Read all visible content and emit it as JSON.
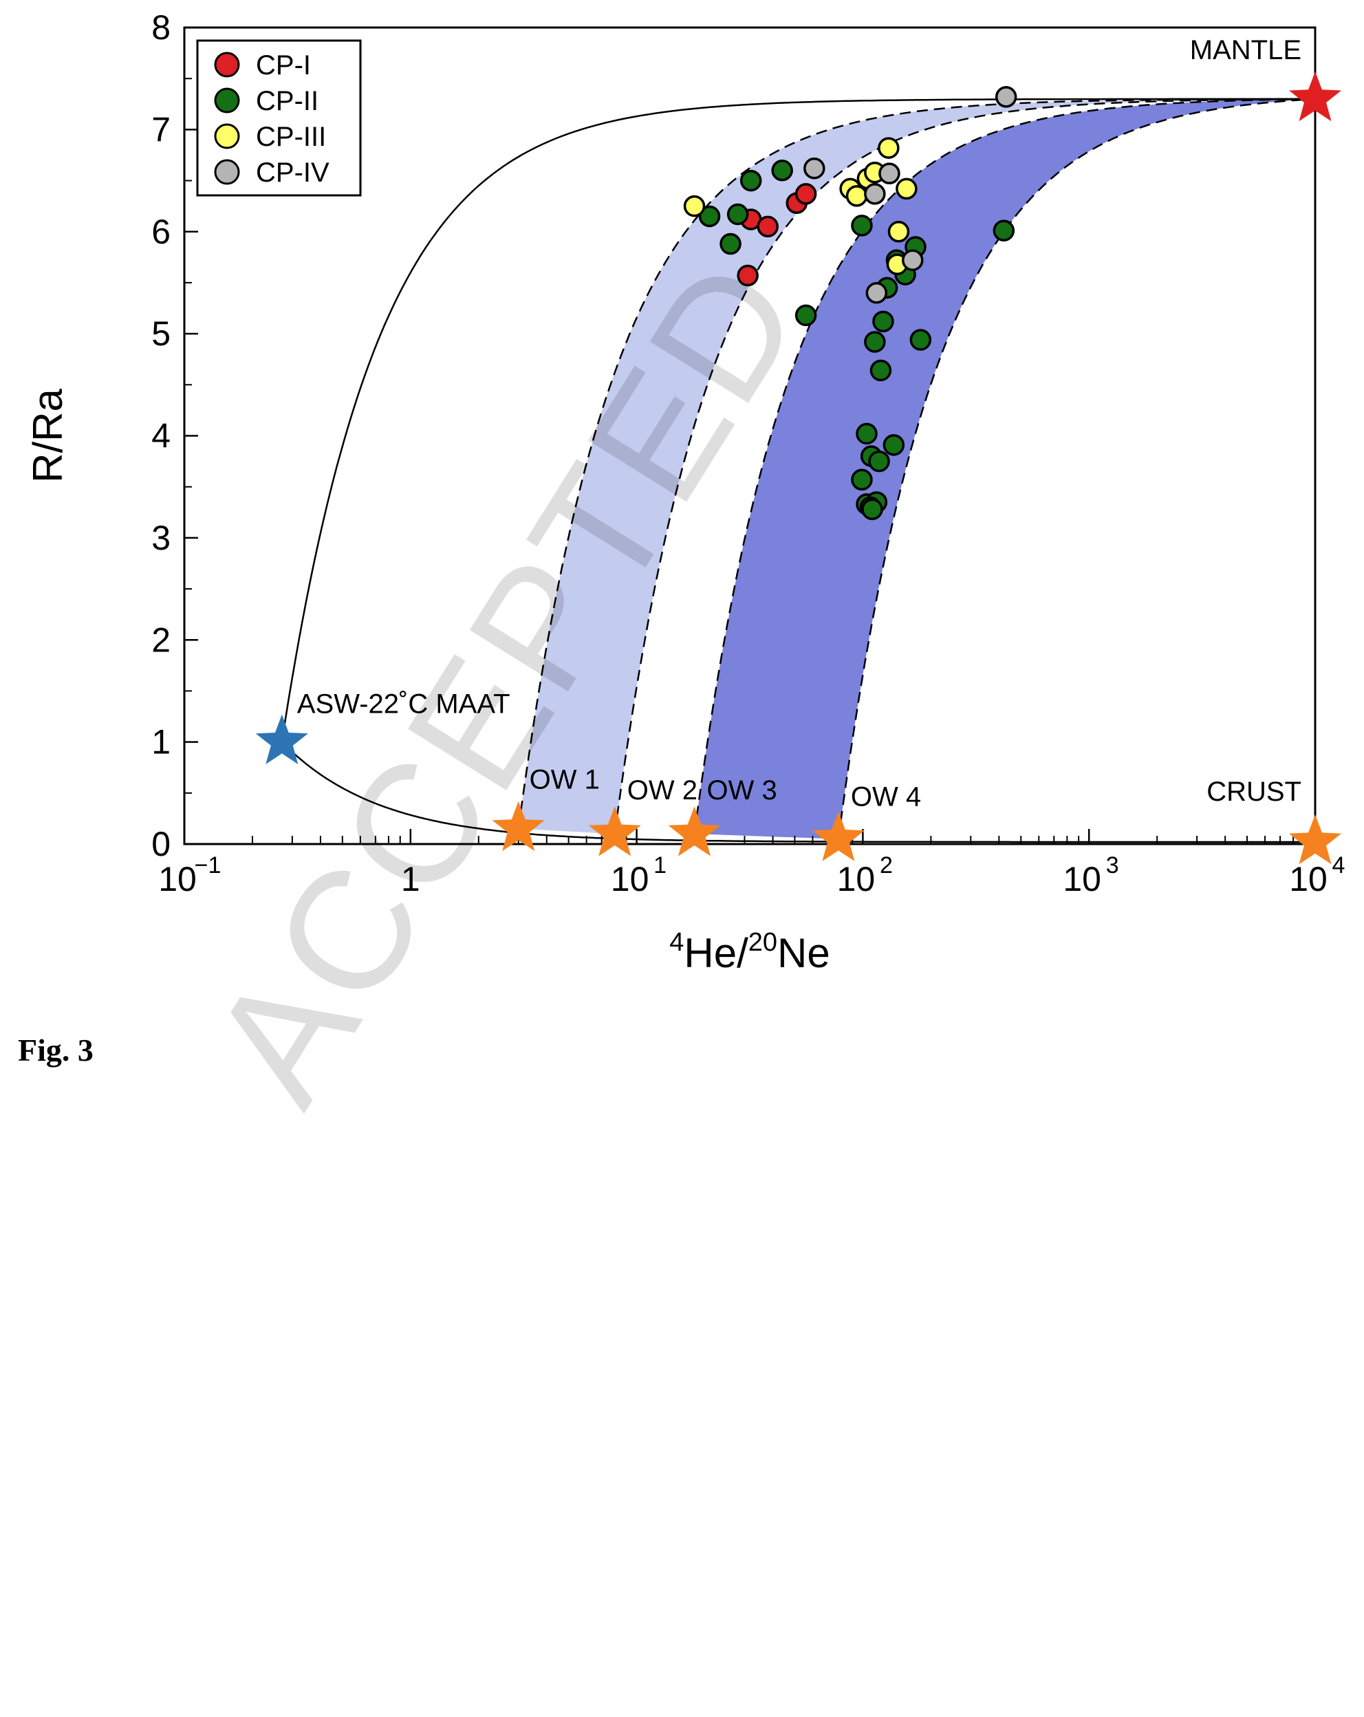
{
  "chart_data": {
    "type": "scatter",
    "xlabel_parts": {
      "sup1": "4",
      "main1": "He/",
      "sup2": "20",
      "main2": "Ne"
    },
    "ylabel": "R/Ra",
    "x_scale": "log",
    "xlim": [
      0.1,
      10000
    ],
    "ylim": [
      0,
      8
    ],
    "x_tick_labels": [
      {
        "value": 0.1,
        "base": "10",
        "exp": "−1"
      },
      {
        "value": 1,
        "base": "1",
        "exp": ""
      },
      {
        "value": 10,
        "base": "10",
        "exp": "1"
      },
      {
        "value": 100,
        "base": "10",
        "exp": "2"
      },
      {
        "value": 1000,
        "base": "10",
        "exp": "3"
      },
      {
        "value": 10000,
        "base": "10",
        "exp": "4"
      }
    ],
    "y_ticks": [
      0,
      1,
      2,
      3,
      4,
      5,
      6,
      7,
      8
    ],
    "grid": false,
    "legend_placement": "top-left",
    "series": [
      {
        "name": "CP-I",
        "color": "#dd1f26",
        "points": [
          [
            31,
            5.57
          ],
          [
            32,
            6.12
          ],
          [
            38,
            6.05
          ],
          [
            51,
            6.28
          ],
          [
            56,
            6.37
          ]
        ]
      },
      {
        "name": "CP-II",
        "color": "#147014",
        "points": [
          [
            21,
            6.15
          ],
          [
            26,
            5.88
          ],
          [
            28,
            6.17
          ],
          [
            32,
            6.5
          ],
          [
            44,
            6.6
          ],
          [
            56,
            5.18
          ],
          [
            99,
            6.06
          ],
          [
            104,
            4.02
          ],
          [
            109,
            3.8
          ],
          [
            99,
            3.57
          ],
          [
            104,
            3.33
          ],
          [
            115,
            3.35
          ],
          [
            108,
            3.3
          ],
          [
            118,
            3.75
          ],
          [
            137,
            3.91
          ],
          [
            110,
            3.28
          ],
          [
            113,
            4.92
          ],
          [
            120,
            4.64
          ],
          [
            123,
            5.12
          ],
          [
            128,
            5.45
          ],
          [
            141,
            5.72
          ],
          [
            154,
            5.58
          ],
          [
            171,
            5.85
          ],
          [
            180,
            4.94
          ],
          [
            420,
            6.01
          ]
        ]
      },
      {
        "name": "CP-III",
        "color": "#ffff66",
        "points": [
          [
            18,
            6.25
          ],
          [
            88,
            6.42
          ],
          [
            94,
            6.35
          ],
          [
            105,
            6.52
          ],
          [
            113,
            6.58
          ],
          [
            130,
            6.82
          ],
          [
            144,
            6.0
          ],
          [
            142,
            5.68
          ],
          [
            156,
            6.42
          ]
        ]
      },
      {
        "name": "CP-IV",
        "color": "#b4b4b4",
        "points": [
          [
            61,
            6.62
          ],
          [
            113,
            6.37
          ],
          [
            131,
            6.57
          ],
          [
            115,
            5.4
          ],
          [
            166,
            5.72
          ],
          [
            430,
            7.32
          ]
        ]
      }
    ],
    "end_members": [
      {
        "label": "ASW-22˚C MAAT",
        "x": 0.27,
        "y": 1.0,
        "color": "#2d74b5"
      },
      {
        "label": "MANTLE",
        "x": 10000,
        "y": 7.3,
        "color": "#e02020"
      },
      {
        "label": "CRUST",
        "x": 10000,
        "y": 0.02,
        "color": "#f5821f"
      },
      {
        "label": "OW 1",
        "x": 3,
        "y": 0.15,
        "color": "#f5821f"
      },
      {
        "label": "OW 2",
        "x": 8,
        "y": 0.1,
        "color": "#f5821f"
      },
      {
        "label": "OW 3",
        "x": 18,
        "y": 0.1,
        "color": "#f5821f"
      },
      {
        "label": "OW 4",
        "x": 78,
        "y": 0.05,
        "color": "#f5821f"
      }
    ],
    "bands": [
      {
        "from": "OW 1",
        "to": "OW 2",
        "fill": "#c3cbef"
      },
      {
        "from": "OW 3",
        "to": "OW 4",
        "fill": "#7a82db"
      }
    ]
  },
  "caption": "Fig. 3",
  "watermark": "ACCEPTED"
}
